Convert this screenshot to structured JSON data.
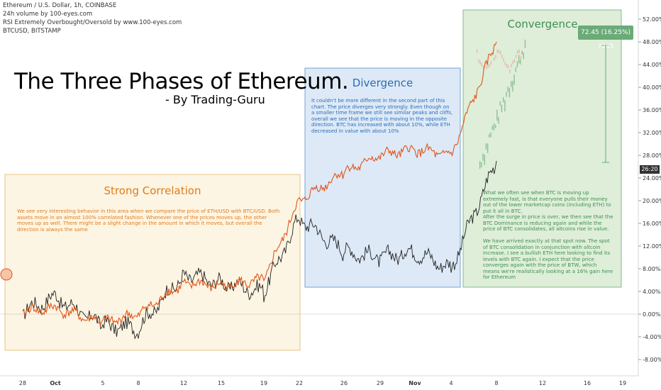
{
  "header": {
    "symbol_line": "Ethereum / U.S. Dollar, 1h, COINBASE",
    "indicator_1": "24h volume by 100-eyes.com",
    "indicator_2": "RSI Extremely Overbought/Oversold by www.100-eyes.com",
    "indicator_3": "BTCUSD, BITSTAMP"
  },
  "overlay": {
    "title": "The Three Phases of Ethereum.",
    "byline": "- By Trading-Guru",
    "badge": "72.45 (16.25%) 7245",
    "price_tag": "26:20"
  },
  "zones": {
    "strong": {
      "title": "Strong Correlation",
      "text": "We see very interesting behavior in this area when we compare the price of ETH/USD with BTC/USD. Both assets move in an almost 100% correlated fashion. Whenever one of the prices moves up, the other moves up as well. There might be a slight change in the amount in which it moves, but overall the direction is always the same",
      "fill": "#fdf5e3",
      "stroke": "#e0b86a",
      "title_color": "#e07b1a",
      "text_color": "#e07b1a"
    },
    "divergence": {
      "title": "Divergence",
      "text": "It couldn't be more different in the second part of this chart. The price diverges very strongly. Even though on a smaller time frame we still see similar peaks and cliffs, overall we see that the price is moving in the opposite direction. BTC has increased with about 10%, while ETH decreased in value with about 10%",
      "fill": "#dde9f7",
      "stroke": "#5b8fc9",
      "title_color": "#2a6db5",
      "text_color": "#2a6db5"
    },
    "convergence": {
      "title": "Convergence",
      "text_1": "What we often see when BTC is moving up extremely fast, is that everyone pulls their money out of the lower marketcap coins (including ETH) to put it all in BTC.",
      "text_2": "After the surge in price is over, we then see that the BTC Dominance is reducing again and while the price of BTC consolidates, all altcoins rise in value.",
      "text_3": "We have arrived exactly at that spot now. The spot of BTC consolidation in conjunction with altcoin increase. I see a bullish ETH here looking to find its levels with BTC again. I expect that the price converges again with the price of BTW, which means we're realistically looking at a 16% gain here for Ethereum",
      "fill": "#deeed9",
      "stroke": "#6aab77",
      "title_color": "#3f8f4f",
      "text_color": "#3f8f4f"
    }
  },
  "colors": {
    "eth_line": "#e0561a",
    "btc_line": "#222222",
    "projection_line": "#6aab77",
    "projection_eth": "#e8a090"
  },
  "chart_data": {
    "type": "line",
    "y_axis_unit": "%",
    "ylim": [
      -10,
      54
    ],
    "y_ticks": [
      "52.00%",
      "48.00%",
      "44.00%",
      "40.00%",
      "36.00%",
      "32.00%",
      "28.00%",
      "24.00%",
      "20.00%",
      "16.00%",
      "12.00%",
      "8.00%",
      "4.00%",
      "0.00%",
      "-4.00%",
      "-8.00%"
    ],
    "x_ticks": [
      "28",
      "Oct",
      "5",
      "8",
      "12",
      "15",
      "19",
      "22",
      "26",
      "29",
      "Nov",
      "4",
      "8",
      "12",
      "16",
      "19"
    ],
    "series": [
      {
        "name": "Ethereum / U.S. Dollar",
        "x": [
          "28",
          "Oct",
          "5",
          "8",
          "12",
          "15",
          "19",
          "22",
          "26",
          "29",
          "Nov",
          "4",
          "8"
        ],
        "values": [
          0.5,
          1.0,
          -1.5,
          0.0,
          5.5,
          5.0,
          6.0,
          20.0,
          25.0,
          28.0,
          29.0,
          28.0,
          48.0
        ]
      },
      {
        "name": "BTCUSD, BITSTAMP",
        "x": [
          "28",
          "Oct",
          "5",
          "8",
          "12",
          "15",
          "19",
          "22",
          "26",
          "29",
          "Nov",
          "4",
          "8"
        ],
        "values": [
          0.5,
          3.0,
          -2.0,
          -2.5,
          7.0,
          5.5,
          4.0,
          17.0,
          11.0,
          10.0,
          11.0,
          8.0,
          27.0
        ]
      }
    ],
    "grid": false,
    "legend": "none"
  }
}
